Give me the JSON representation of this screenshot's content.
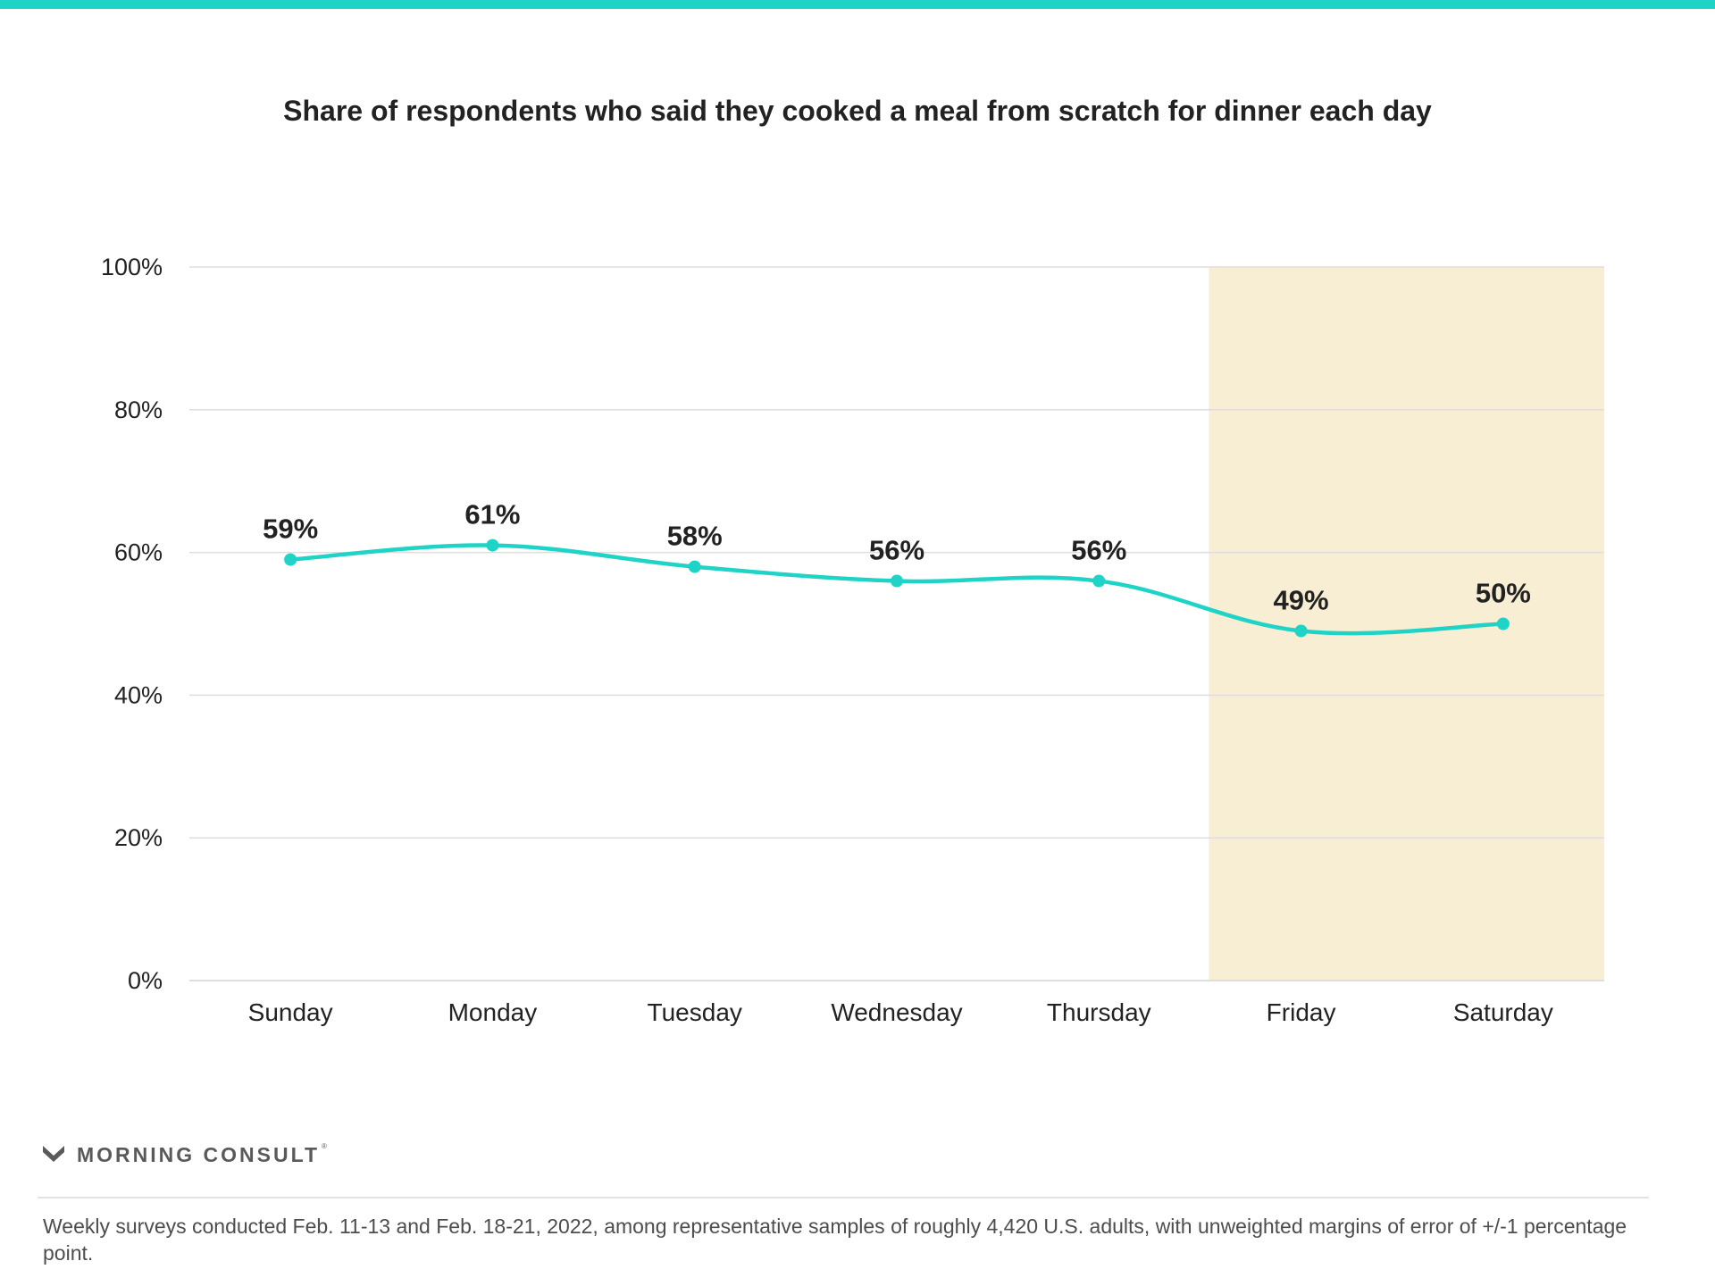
{
  "colors": {
    "accent": "#1fd3c6",
    "weekend_band": "#f7eed3",
    "gridline": "#dedede",
    "text": "#222222"
  },
  "header": {
    "title": "Share of respondents who said they cooked a meal from scratch for dinner each day"
  },
  "branding": {
    "logo_text": "MORNING CONSULT",
    "logo_icon": "morning-consult-m-icon"
  },
  "footer": {
    "note": "Weekly surveys conducted Feb. 11-13 and Feb. 18-21, 2022, among representative samples of roughly 4,420 U.S. adults, with unweighted margins of error of +/-1 percentage point."
  },
  "chart_data": {
    "type": "line",
    "title": "Share of respondents who said they cooked a meal from scratch for dinner each day",
    "categories": [
      "Sunday",
      "Monday",
      "Tuesday",
      "Wednesday",
      "Thursday",
      "Friday",
      "Saturday"
    ],
    "values": [
      59,
      61,
      58,
      56,
      56,
      49,
      50
    ],
    "data_labels": [
      "59%",
      "61%",
      "58%",
      "56%",
      "56%",
      "49%",
      "50%"
    ],
    "ylim": [
      0,
      100
    ],
    "yticks": [
      0,
      20,
      40,
      60,
      80,
      100
    ],
    "ytick_labels": [
      "0%",
      "20%",
      "40%",
      "60%",
      "80%",
      "100%"
    ],
    "grid": true,
    "line_style": "smooth",
    "highlight_categories": [
      "Friday",
      "Saturday"
    ]
  }
}
